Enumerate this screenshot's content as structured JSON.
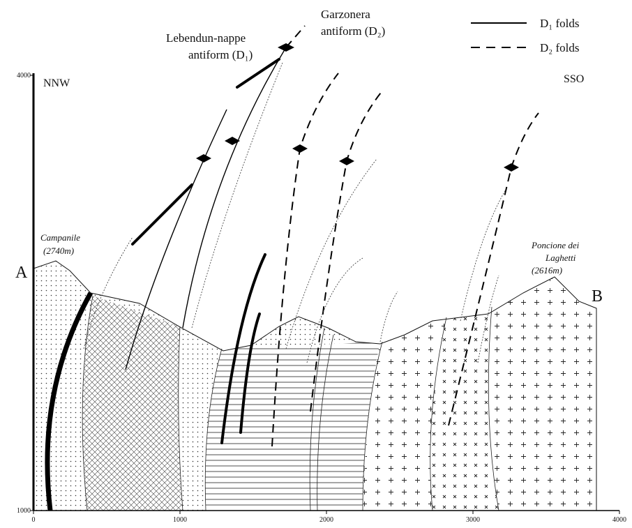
{
  "annotations": {
    "lebendun": [
      "Lebendun-nappe",
      "antiform (D₁)"
    ],
    "garzonera": [
      "Garzonera",
      "antiform (D₂)"
    ],
    "nnw": "NNW",
    "sso": "SSO",
    "section_start": "A",
    "section_end": "B",
    "campanile": [
      "Campanile",
      "(2740m)"
    ],
    "poncione": [
      "Poncione dei",
      "Laghetti",
      "(2616m)"
    ]
  },
  "legend": [
    {
      "label": "D₁ folds",
      "style": "solid"
    },
    {
      "label": "D₂ folds",
      "style": "dashed"
    }
  ],
  "axes": {
    "xlim": [
      0,
      4000
    ],
    "ylim": [
      1000,
      4000
    ],
    "xticks": [
      0,
      1000,
      2000,
      3000,
      4000
    ],
    "yticks": [
      1000,
      4000
    ]
  }
}
